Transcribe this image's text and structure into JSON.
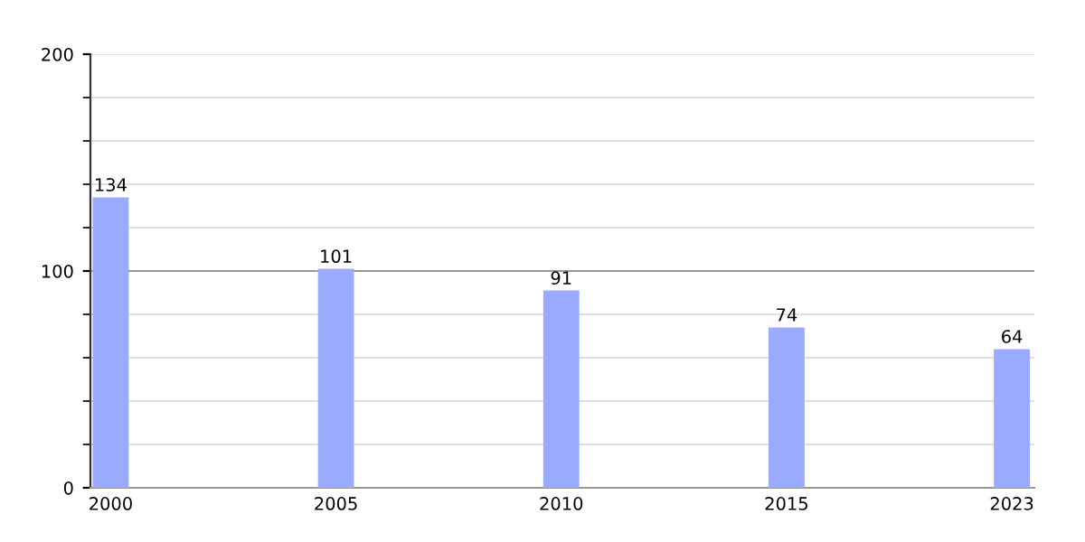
{
  "chart_data": {
    "type": "bar",
    "categories": [
      "2000",
      "2005",
      "2010",
      "2015",
      "2023"
    ],
    "values": [
      134,
      101,
      91,
      74,
      64
    ],
    "color": "#99aaff",
    "ylim": [
      0,
      200
    ],
    "yticks": [
      0,
      {
        "value": 20,
        "label": null
      },
      {
        "value": 40,
        "label": null
      },
      {
        "value": 60,
        "label": null
      },
      {
        "value": 80,
        "label": null
      },
      100,
      {
        "value": 120,
        "label": null
      },
      {
        "value": 140,
        "label": null
      },
      {
        "value": 160,
        "label": null
      },
      {
        "value": 180,
        "label": null
      },
      200
    ],
    "grid": "y",
    "data_labels": true,
    "ref_lines": [
      {
        "axis": "y",
        "value": 100,
        "color": "#999999"
      }
    ]
  }
}
